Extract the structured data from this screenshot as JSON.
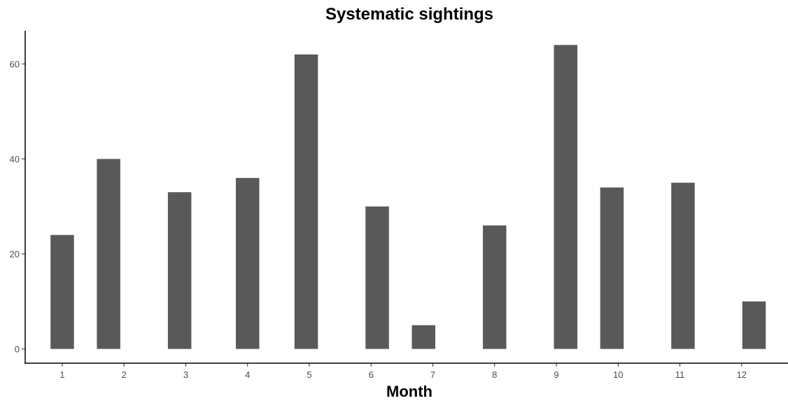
{
  "chart_data": {
    "type": "bar",
    "title": "Systematic sightings",
    "xlabel": "Month",
    "ylabel": "",
    "x": [
      1,
      2,
      3,
      4,
      5,
      6,
      7,
      8,
      9,
      10,
      11,
      12
    ],
    "x_ticks": [
      "1",
      "2",
      "3",
      "4",
      "5",
      "6",
      "7",
      "8",
      "9",
      "10",
      "11",
      "12"
    ],
    "bars": [
      {
        "x": 1.0,
        "value": 24
      },
      {
        "x": 1.75,
        "value": 40
      },
      {
        "x": 2.9,
        "value": 33
      },
      {
        "x": 4.0,
        "value": 36
      },
      {
        "x": 4.95,
        "value": 62
      },
      {
        "x": 6.1,
        "value": 30
      },
      {
        "x": 6.85,
        "value": 5
      },
      {
        "x": 8.0,
        "value": 26
      },
      {
        "x": 9.15,
        "value": 64
      },
      {
        "x": 9.9,
        "value": 34
      },
      {
        "x": 11.05,
        "value": 35
      },
      {
        "x": 12.2,
        "value": 10
      }
    ],
    "bar_width": 0.38,
    "y_ticks": [
      0,
      20,
      40,
      60
    ],
    "xlim": [
      0.4,
      12.75
    ],
    "ylim": [
      -3,
      67
    ],
    "grid": false,
    "bar_color": "#595959"
  }
}
